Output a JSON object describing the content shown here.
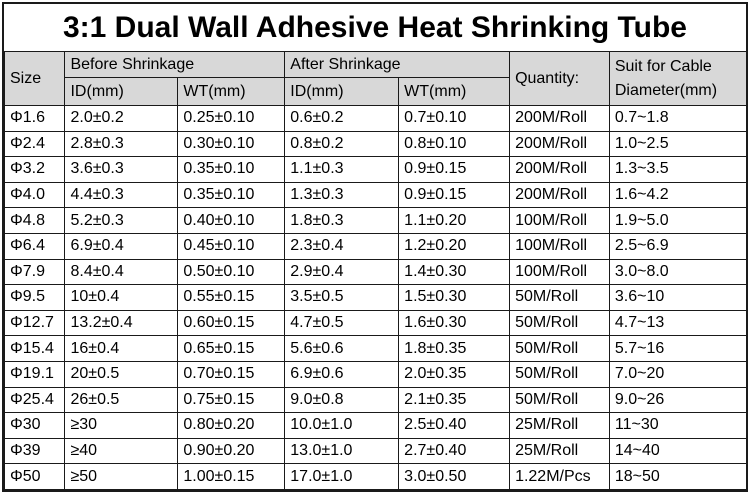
{
  "title": "3:1 Dual Wall Adhesive Heat Shrinking Tube",
  "colors": {
    "header_bg": "#d8d8d8",
    "border": "#1a1a1a",
    "text": "#000000",
    "background": "#ffffff"
  },
  "table": {
    "header": {
      "size": "Size",
      "before_group": "Before Shrinkage",
      "after_group": "After Shrinkage",
      "id_before": "ID(mm)",
      "wt_before": "WT(mm)",
      "id_after": "ID(mm)",
      "wt_after": "WT(mm)",
      "quantity": "Quantity:",
      "suit": "Suit for Cable Diameter(mm)"
    },
    "rows": [
      [
        "Φ1.6",
        "2.0±0.2",
        "0.25±0.10",
        "0.6±0.2",
        "0.7±0.10",
        "200M/Roll",
        "0.7~1.8"
      ],
      [
        "Φ2.4",
        "2.8±0.3",
        "0.30±0.10",
        "0.8±0.2",
        "0.8±0.10",
        "200M/Roll",
        "1.0~2.5"
      ],
      [
        "Φ3.2",
        "3.6±0.3",
        "0.35±0.10",
        "1.1±0.3",
        "0.9±0.15",
        "200M/Roll",
        "1.3~3.5"
      ],
      [
        "Φ4.0",
        "4.4±0.3",
        "0.35±0.10",
        "1.3±0.3",
        "0.9±0.15",
        "200M/Roll",
        "1.6~4.2"
      ],
      [
        "Φ4.8",
        "5.2±0.3",
        "0.40±0.10",
        "1.8±0.3",
        "1.1±0.20",
        "100M/Roll",
        "1.9~5.0"
      ],
      [
        "Φ6.4",
        "6.9±0.4",
        "0.45±0.10",
        "2.3±0.4",
        "1.2±0.20",
        "100M/Roll",
        "2.5~6.9"
      ],
      [
        "Φ7.9",
        "8.4±0.4",
        "0.50±0.10",
        "2.9±0.4",
        "1.4±0.30",
        "100M/Roll",
        "3.0~8.0"
      ],
      [
        "Φ9.5",
        "10±0.4",
        "0.55±0.15",
        "3.5±0.5",
        "1.5±0.30",
        "50M/Roll",
        "3.6~10"
      ],
      [
        "Φ12.7",
        "13.2±0.4",
        "0.60±0.15",
        "4.7±0.5",
        "1.6±0.30",
        "50M/Roll",
        "4.7~13"
      ],
      [
        "Φ15.4",
        "16±0.4",
        "0.65±0.15",
        "5.6±0.6",
        "1.8±0.35",
        "50M/Roll",
        "5.7~16"
      ],
      [
        "Φ19.1",
        "20±0.5",
        "0.70±0.15",
        "6.9±0.6",
        "2.0±0.35",
        "50M/Roll",
        "7.0~20"
      ],
      [
        "Φ25.4",
        "26±0.5",
        "0.75±0.15",
        "9.0±0.8",
        "2.1±0.35",
        "50M/Roll",
        "9.0~26"
      ],
      [
        "Φ30",
        "≥30",
        "0.80±0.20",
        "10.0±1.0",
        "2.5±0.40",
        "25M/Roll",
        "11~30"
      ],
      [
        "Φ39",
        "≥40",
        "0.90±0.20",
        "13.0±1.0",
        "2.7±0.40",
        "25M/Roll",
        "14~40"
      ],
      [
        "Φ50",
        "≥50",
        "1.00±0.15",
        "17.0±1.0",
        "3.0±0.50",
        "1.22M/Pcs",
        "18~50"
      ]
    ]
  }
}
